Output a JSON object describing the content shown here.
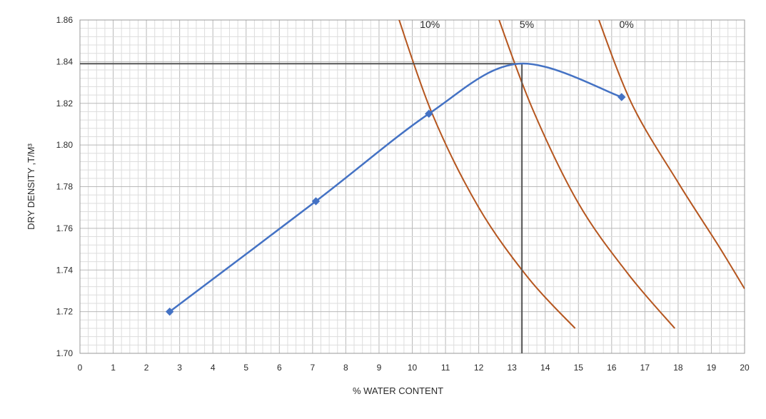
{
  "chart_data": {
    "type": "line",
    "title": "",
    "xlabel": "% WATER CONTENT",
    "ylabel": "DRY DENSITY ,T/M³",
    "xlim": [
      0,
      20
    ],
    "ylim": [
      1.7,
      1.86
    ],
    "x_ticks": [
      0,
      1,
      2,
      3,
      4,
      5,
      6,
      7,
      8,
      9,
      10,
      11,
      12,
      13,
      14,
      15,
      16,
      17,
      18,
      19,
      20
    ],
    "y_ticks": [
      1.7,
      1.72,
      1.74,
      1.76,
      1.78,
      1.8,
      1.82,
      1.84,
      1.86
    ],
    "grid": true,
    "series": [
      {
        "role": "compaction-curve",
        "color": "#4472c4",
        "marker": "diamond",
        "points": [
          {
            "x": 2.7,
            "y": 1.72
          },
          {
            "x": 7.1,
            "y": 1.773
          },
          {
            "x": 10.5,
            "y": 1.815
          },
          {
            "x": 13.2,
            "y": 1.839
          },
          {
            "x": 16.3,
            "y": 1.823
          }
        ],
        "markers_at": [
          0,
          1,
          2,
          4
        ]
      },
      {
        "name": "10%",
        "role": "zero-air-voids-curve",
        "color": "#b5561f",
        "points": [
          {
            "x": 9.5,
            "y": 1.865
          },
          {
            "x": 10.6,
            "y": 1.815
          },
          {
            "x": 12.0,
            "y": 1.77
          },
          {
            "x": 13.5,
            "y": 1.736
          },
          {
            "x": 14.9,
            "y": 1.712
          }
        ]
      },
      {
        "name": "5%",
        "role": "zero-air-voids-curve",
        "color": "#b5561f",
        "points": [
          {
            "x": 12.5,
            "y": 1.865
          },
          {
            "x": 13.6,
            "y": 1.818
          },
          {
            "x": 15.0,
            "y": 1.772
          },
          {
            "x": 16.5,
            "y": 1.738
          },
          {
            "x": 17.9,
            "y": 1.712
          }
        ]
      },
      {
        "name": "0%",
        "role": "zero-air-voids-curve",
        "color": "#b5561f",
        "points": [
          {
            "x": 15.5,
            "y": 1.865
          },
          {
            "x": 16.6,
            "y": 1.82
          },
          {
            "x": 18.0,
            "y": 1.782
          },
          {
            "x": 19.2,
            "y": 1.752
          },
          {
            "x": 20.0,
            "y": 1.731
          }
        ]
      }
    ],
    "reference_lines": {
      "color": "#555555",
      "optimum_moisture_content": 13.3,
      "max_dry_density": 1.839
    }
  }
}
